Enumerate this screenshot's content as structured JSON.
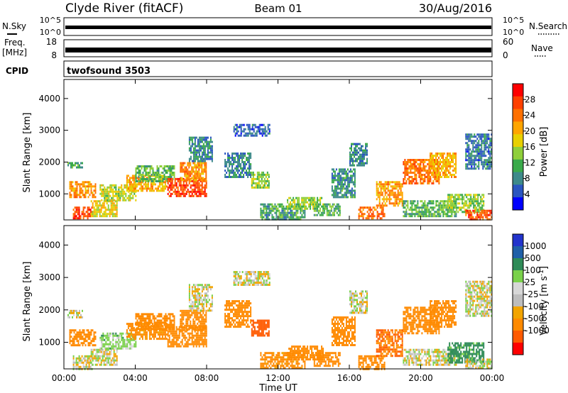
{
  "header": {
    "station": "Clyde River (fitACF)",
    "beam": "Beam 01",
    "date": "30/Aug/2016"
  },
  "noise_panel": {
    "left_label": "N.Sky",
    "left_ticks": [
      "10^5",
      "10^0"
    ],
    "right_ticks": [
      "10^5",
      "10^0"
    ],
    "right_label": "N.Search"
  },
  "freq_panel": {
    "left_label_top": "Freq.",
    "left_label_unit": "[MHz]",
    "left_ticks": [
      "18",
      "8"
    ],
    "right_ticks": [
      "60",
      "0"
    ],
    "right_label": "Nave"
  },
  "cpid_panel": {
    "label": "CPID",
    "program": "twofsound 3503"
  },
  "colors": {
    "scale_power": [
      "#0000ff",
      "#2a55c0",
      "#3d8a8a",
      "#3aaa4a",
      "#8fcf3a",
      "#e8d000",
      "#ffa500",
      "#ff7000",
      "#ff4000",
      "#ff0000"
    ],
    "scale_velocity": [
      "#ff0000",
      "#ff5a00",
      "#ff8a00",
      "#f2a400",
      "#bdbdbd",
      "#d7d7d7",
      "#7ad14a",
      "#2e8b57",
      "#1f5fa8",
      "#2233cc"
    ]
  },
  "chart_data": [
    {
      "type": "heatmap",
      "name": "power",
      "ylabel": "Slant Range [km]",
      "x_ticks": [
        "00:00",
        "04:00",
        "08:00",
        "12:00",
        "16:00",
        "20:00",
        "00:00"
      ],
      "y_ticks": [
        1000,
        2000,
        3000,
        4000
      ],
      "ylim": [
        180,
        4600
      ],
      "colorbar": {
        "label": "Power [dB]",
        "ticks": [
          4,
          8,
          12,
          16,
          20,
          24,
          28
        ],
        "range": [
          0,
          32
        ]
      },
      "regions": [
        {
          "t0": 0.2,
          "t1": 1.0,
          "r0": 1800,
          "r1": 2000,
          "v": 10
        },
        {
          "t0": 0.3,
          "t1": 1.8,
          "r0": 900,
          "r1": 1400,
          "v": 22
        },
        {
          "t0": 0.5,
          "t1": 1.6,
          "r0": 200,
          "r1": 600,
          "v": 27
        },
        {
          "t0": 1.5,
          "t1": 3.0,
          "r0": 300,
          "r1": 800,
          "v": 18
        },
        {
          "t0": 2.0,
          "t1": 4.0,
          "r0": 800,
          "r1": 1300,
          "v": 16
        },
        {
          "t0": 3.5,
          "t1": 5.8,
          "r0": 1100,
          "r1": 1600,
          "v": 20
        },
        {
          "t0": 4.0,
          "t1": 6.2,
          "r0": 1400,
          "r1": 1900,
          "v": 12
        },
        {
          "t0": 5.8,
          "t1": 8.0,
          "r0": 900,
          "r1": 1500,
          "v": 27
        },
        {
          "t0": 6.5,
          "t1": 8.0,
          "r0": 1400,
          "r1": 2000,
          "v": 22
        },
        {
          "t0": 7.0,
          "t1": 8.3,
          "r0": 2000,
          "r1": 2800,
          "v": 8
        },
        {
          "t0": 9.0,
          "t1": 10.5,
          "r0": 1500,
          "r1": 2300,
          "v": 8
        },
        {
          "t0": 9.5,
          "t1": 11.5,
          "r0": 2800,
          "r1": 3200,
          "v": 6
        },
        {
          "t0": 10.5,
          "t1": 11.5,
          "r0": 1200,
          "r1": 1700,
          "v": 14
        },
        {
          "t0": 11.0,
          "t1": 13.5,
          "r0": 200,
          "r1": 700,
          "v": 10
        },
        {
          "t0": 12.5,
          "t1": 14.5,
          "r0": 500,
          "r1": 900,
          "v": 14
        },
        {
          "t0": 14.0,
          "t1": 15.5,
          "r0": 300,
          "r1": 700,
          "v": 12
        },
        {
          "t0": 15.0,
          "t1": 16.3,
          "r0": 900,
          "r1": 1800,
          "v": 9
        },
        {
          "t0": 16.5,
          "t1": 18.0,
          "r0": 200,
          "r1": 600,
          "v": 25
        },
        {
          "t0": 16.0,
          "t1": 17.0,
          "r0": 1900,
          "r1": 2600,
          "v": 8
        },
        {
          "t0": 17.5,
          "t1": 19.0,
          "r0": 600,
          "r1": 1400,
          "v": 22
        },
        {
          "t0": 19.0,
          "t1": 21.0,
          "r0": 1300,
          "r1": 2100,
          "v": 24
        },
        {
          "t0": 20.5,
          "t1": 22.0,
          "r0": 1500,
          "r1": 2300,
          "v": 20
        },
        {
          "t0": 19.0,
          "t1": 22.0,
          "r0": 300,
          "r1": 800,
          "v": 12
        },
        {
          "t0": 21.5,
          "t1": 23.5,
          "r0": 400,
          "r1": 1000,
          "v": 14
        },
        {
          "t0": 22.5,
          "t1": 24.0,
          "r0": 200,
          "r1": 500,
          "v": 26
        },
        {
          "t0": 22.5,
          "t1": 24.0,
          "r0": 1800,
          "r1": 2900,
          "v": 7
        }
      ]
    },
    {
      "type": "heatmap",
      "name": "velocity",
      "ylabel": "Slant Range [km]",
      "xlabel": "Time UT",
      "x_ticks": [
        "00:00",
        "04:00",
        "08:00",
        "12:00",
        "16:00",
        "20:00",
        "00:00"
      ],
      "y_ticks": [
        1000,
        2000,
        3000,
        4000
      ],
      "ylim": [
        180,
        4600
      ],
      "colorbar": {
        "label": "Velocity [m s^-1]",
        "ticks": [
          1000,
          500,
          100,
          25,
          -25,
          -100,
          -500,
          -1000
        ]
      },
      "regions": [
        {
          "t0": 0.2,
          "t1": 1.0,
          "r0": 1800,
          "r1": 2000,
          "v": 0
        },
        {
          "t0": 0.3,
          "t1": 1.8,
          "r0": 900,
          "r1": 1400,
          "v": -200
        },
        {
          "t0": 0.5,
          "t1": 1.6,
          "r0": 200,
          "r1": 600,
          "v": 0
        },
        {
          "t0": 1.5,
          "t1": 3.0,
          "r0": 300,
          "r1": 800,
          "v": 0
        },
        {
          "t0": 2.0,
          "t1": 4.0,
          "r0": 800,
          "r1": 1300,
          "v": 50
        },
        {
          "t0": 3.5,
          "t1": 5.8,
          "r0": 1100,
          "r1": 1600,
          "v": -150
        },
        {
          "t0": 4.0,
          "t1": 6.2,
          "r0": 1400,
          "r1": 1900,
          "v": -300
        },
        {
          "t0": 5.8,
          "t1": 8.0,
          "r0": 900,
          "r1": 1500,
          "v": -350
        },
        {
          "t0": 6.5,
          "t1": 8.0,
          "r0": 1400,
          "r1": 2000,
          "v": -200
        },
        {
          "t0": 7.0,
          "t1": 8.3,
          "r0": 2000,
          "r1": 2800,
          "v": 0
        },
        {
          "t0": 9.0,
          "t1": 10.5,
          "r0": 1500,
          "r1": 2300,
          "v": -400
        },
        {
          "t0": 9.5,
          "t1": 11.5,
          "r0": 2800,
          "r1": 3200,
          "v": 0
        },
        {
          "t0": 10.5,
          "t1": 11.5,
          "r0": 1200,
          "r1": 1700,
          "v": -600
        },
        {
          "t0": 11.0,
          "t1": 13.5,
          "r0": 200,
          "r1": 700,
          "v": -150
        },
        {
          "t0": 12.5,
          "t1": 14.5,
          "r0": 500,
          "r1": 900,
          "v": -200
        },
        {
          "t0": 14.0,
          "t1": 15.5,
          "r0": 300,
          "r1": 700,
          "v": -300
        },
        {
          "t0": 15.0,
          "t1": 16.3,
          "r0": 900,
          "r1": 1800,
          "v": -350
        },
        {
          "t0": 16.5,
          "t1": 18.0,
          "r0": 200,
          "r1": 600,
          "v": -400
        },
        {
          "t0": 16.0,
          "t1": 17.0,
          "r0": 1900,
          "r1": 2600,
          "v": 0
        },
        {
          "t0": 17.5,
          "t1": 19.0,
          "r0": 600,
          "r1": 1400,
          "v": -500
        },
        {
          "t0": 19.0,
          "t1": 21.0,
          "r0": 1300,
          "r1": 2100,
          "v": -400
        },
        {
          "t0": 20.5,
          "t1": 22.0,
          "r0": 1500,
          "r1": 2300,
          "v": -200
        },
        {
          "t0": 19.0,
          "t1": 22.0,
          "r0": 300,
          "r1": 800,
          "v": 0
        },
        {
          "t0": 21.5,
          "t1": 23.5,
          "r0": 400,
          "r1": 1000,
          "v": 150
        },
        {
          "t0": 22.5,
          "t1": 24.0,
          "r0": 200,
          "r1": 500,
          "v": 0
        },
        {
          "t0": 22.5,
          "t1": 24.0,
          "r0": 1800,
          "r1": 2900,
          "v": 0
        }
      ]
    }
  ]
}
